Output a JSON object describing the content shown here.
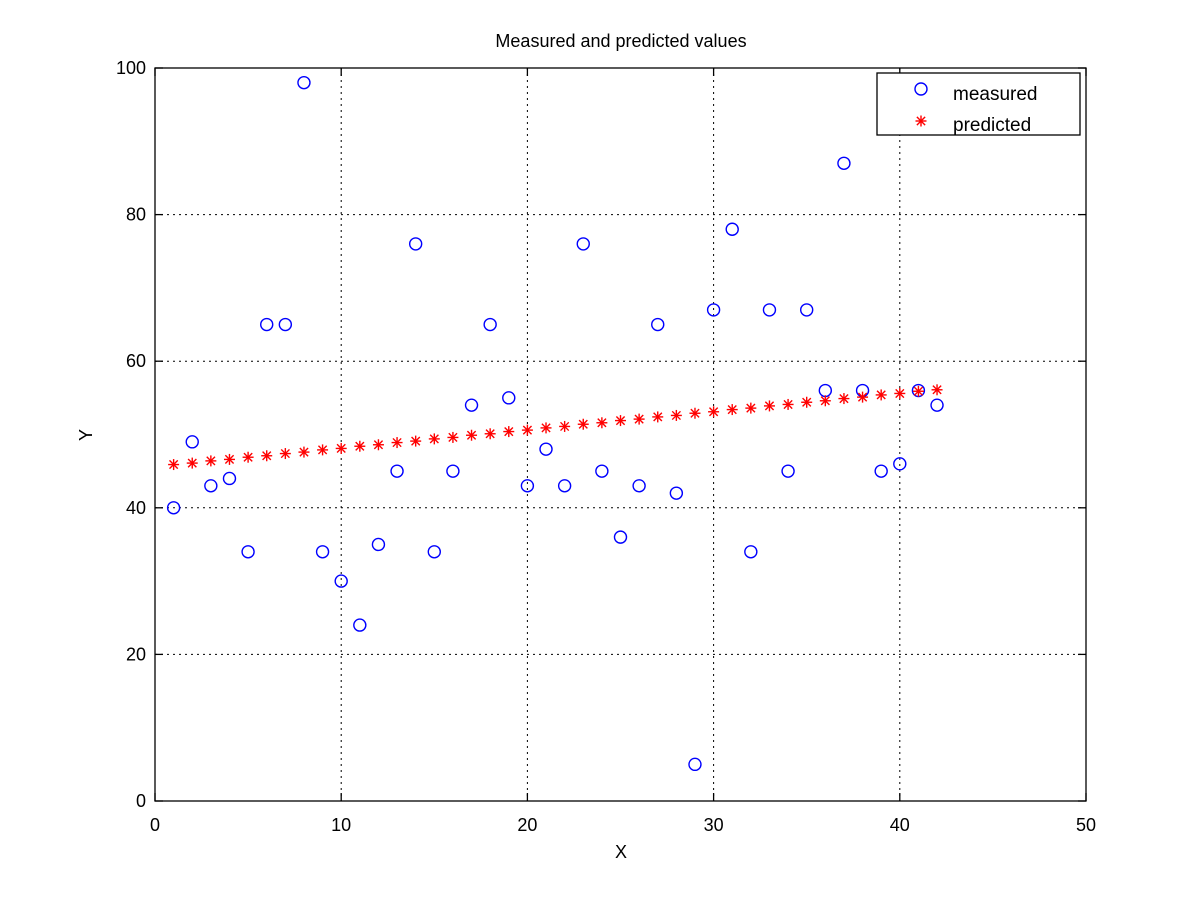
{
  "chart_data": {
    "type": "scatter",
    "title": "Measured and predicted values",
    "xlabel": "X",
    "ylabel": "Y",
    "xlim": [
      0,
      50
    ],
    "ylim": [
      0,
      100
    ],
    "xticks": [
      0,
      10,
      20,
      30,
      40,
      50
    ],
    "yticks": [
      0,
      20,
      40,
      60,
      80,
      100
    ],
    "grid": true,
    "legend_position": "top-right",
    "series": [
      {
        "name": "measured",
        "marker": "circle",
        "color": "#0000ff",
        "x": [
          1,
          2,
          3,
          4,
          5,
          6,
          7,
          8,
          9,
          10,
          11,
          12,
          13,
          14,
          15,
          16,
          17,
          18,
          19,
          20,
          21,
          22,
          23,
          24,
          25,
          26,
          27,
          28,
          29,
          30,
          31,
          32,
          33,
          34,
          35,
          36,
          37,
          38,
          39,
          40,
          41,
          42
        ],
        "y": [
          40,
          49,
          43,
          44,
          34,
          65,
          65,
          98,
          34,
          30,
          24,
          35,
          45,
          76,
          34,
          45,
          54,
          65,
          55,
          43,
          48,
          43,
          76,
          45,
          36,
          43,
          65,
          42,
          5,
          67,
          78,
          34,
          67,
          45,
          67,
          56,
          87,
          56,
          45,
          46,
          56,
          54
        ]
      },
      {
        "name": "predicted",
        "marker": "asterisk",
        "color": "#ff0000",
        "x": [
          1,
          2,
          3,
          4,
          5,
          6,
          7,
          8,
          9,
          10,
          11,
          12,
          13,
          14,
          15,
          16,
          17,
          18,
          19,
          20,
          21,
          22,
          23,
          24,
          25,
          26,
          27,
          28,
          29,
          30,
          31,
          32,
          33,
          34,
          35,
          36,
          37,
          38,
          39,
          40,
          41,
          42
        ],
        "y": [
          45.9,
          46.1,
          46.4,
          46.6,
          46.9,
          47.1,
          47.4,
          47.6,
          47.9,
          48.1,
          48.4,
          48.6,
          48.9,
          49.1,
          49.4,
          49.6,
          49.9,
          50.1,
          50.4,
          50.6,
          50.9,
          51.1,
          51.4,
          51.6,
          51.9,
          52.1,
          52.4,
          52.6,
          52.9,
          53.1,
          53.4,
          53.6,
          53.9,
          54.1,
          54.4,
          54.6,
          54.9,
          55.1,
          55.4,
          55.6,
          55.9,
          56.1
        ]
      }
    ]
  }
}
